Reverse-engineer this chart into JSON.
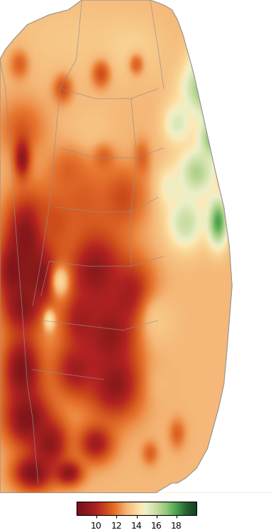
{
  "colorbar_ticks": [
    10,
    12,
    14,
    16,
    18
  ],
  "colors_list": [
    [
      8.0,
      "#7B0D1E"
    ],
    [
      9.0,
      "#8B1A1A"
    ],
    [
      10.0,
      "#B22222"
    ],
    [
      11.0,
      "#CD4C1A"
    ],
    [
      12.0,
      "#E87830"
    ],
    [
      13.0,
      "#F5B878"
    ],
    [
      14.0,
      "#FAD99A"
    ],
    [
      14.5,
      "#FDE8B8"
    ],
    [
      15.0,
      "#EAF0C8"
    ],
    [
      16.0,
      "#C8DCA0"
    ],
    [
      17.0,
      "#90C878"
    ],
    [
      18.0,
      "#4EA050"
    ],
    [
      19.0,
      "#286030"
    ],
    [
      20.0,
      "#144020"
    ]
  ],
  "fig_width": 3.85,
  "fig_height": 7.47,
  "dpi": 100,
  "base_value": 13.0,
  "colorbar_label_fontsize": 9
}
